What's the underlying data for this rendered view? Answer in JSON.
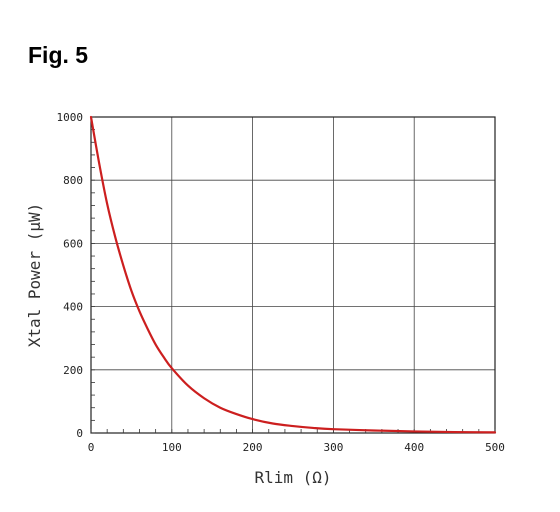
{
  "figure_label": "Fig. 5",
  "chart_data": {
    "type": "line",
    "title": "",
    "xlabel": "Rlim (Ω)",
    "ylabel": "Xtal Power (µW)",
    "xlim": [
      0,
      500
    ],
    "ylim": [
      0,
      1000
    ],
    "xticks": [
      0,
      100,
      200,
      300,
      400,
      500
    ],
    "yticks": [
      0,
      200,
      400,
      600,
      800,
      1000
    ],
    "xtick_labels": [
      "0",
      "100",
      "200",
      "300",
      "400",
      "500"
    ],
    "ytick_labels": [
      "0",
      "200",
      "400",
      "600",
      "800",
      "1000"
    ],
    "grid": true,
    "line_color": "#cc1f1f",
    "series": [
      {
        "x": [
          0,
          10,
          20,
          30,
          40,
          50,
          60,
          70,
          80,
          90,
          100,
          120,
          140,
          160,
          180,
          200,
          225,
          250,
          275,
          300,
          350,
          400,
          450,
          500
        ],
        "y": [
          1000,
          855,
          725,
          620,
          530,
          450,
          385,
          330,
          280,
          240,
          205,
          150,
          110,
          80,
          60,
          44,
          30,
          22,
          16,
          12,
          8,
          5,
          3,
          2
        ]
      }
    ]
  }
}
